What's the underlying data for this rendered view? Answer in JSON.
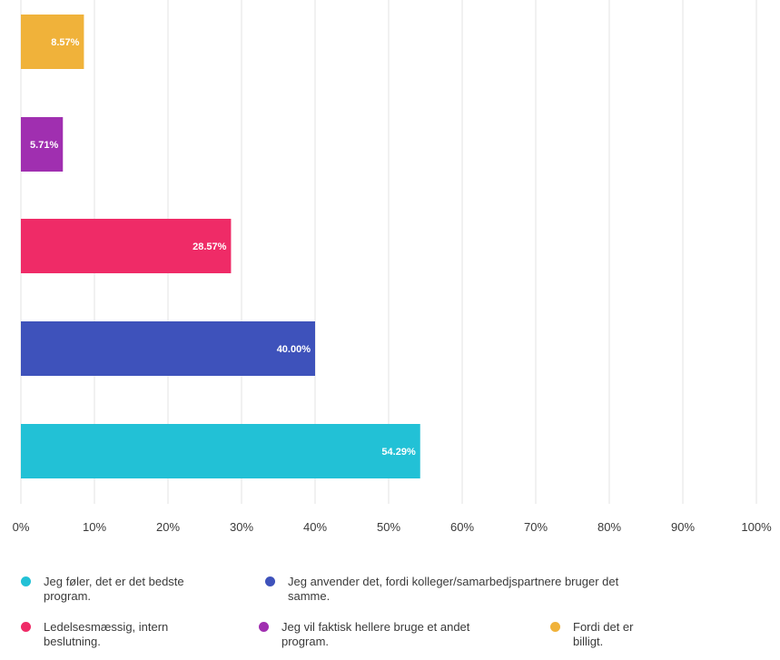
{
  "chart_data": {
    "type": "bar",
    "orientation": "horizontal",
    "categories": [
      "Fordi det er billigt.",
      "Jeg vil faktisk hellere bruge et andet program.",
      "Ledelsesmæssig, intern beslutning.",
      "Jeg anvender det, fordi kolleger/samarbedjspartnere bruger det samme.",
      "Jeg føler, det er det bedste program."
    ],
    "values": [
      8.57,
      5.71,
      28.57,
      40.0,
      54.29
    ],
    "value_labels": [
      "8.57%",
      "5.71%",
      "28.57%",
      "40.00%",
      "54.29%"
    ],
    "colors": [
      "#f0b23a",
      "#a02fb0",
      "#ef2b67",
      "#3e52bb",
      "#22c1d6"
    ],
    "xlim": [
      0,
      100
    ],
    "x_ticks": [
      "0%",
      "10%",
      "20%",
      "30%",
      "40%",
      "50%",
      "60%",
      "70%",
      "80%",
      "90%",
      "100%"
    ],
    "grid": true,
    "legend_position": "bottom"
  },
  "legend": [
    {
      "label_lines": [
        "Jeg føler, det er det bedste",
        "program."
      ],
      "color": "#22c1d6"
    },
    {
      "label_lines": [
        "Jeg anvender det, fordi kolleger/samarbedjspartnere bruger det",
        "samme."
      ],
      "color": "#3e52bb"
    },
    {
      "label_lines": [
        "Ledelsesmæssig, intern",
        "beslutning."
      ],
      "color": "#ef2b67"
    },
    {
      "label_lines": [
        "Jeg vil faktisk hellere bruge et andet",
        "program."
      ],
      "color": "#a02fb0"
    },
    {
      "label_lines": [
        "Fordi det er",
        "billigt."
      ],
      "color": "#f0b23a"
    }
  ]
}
